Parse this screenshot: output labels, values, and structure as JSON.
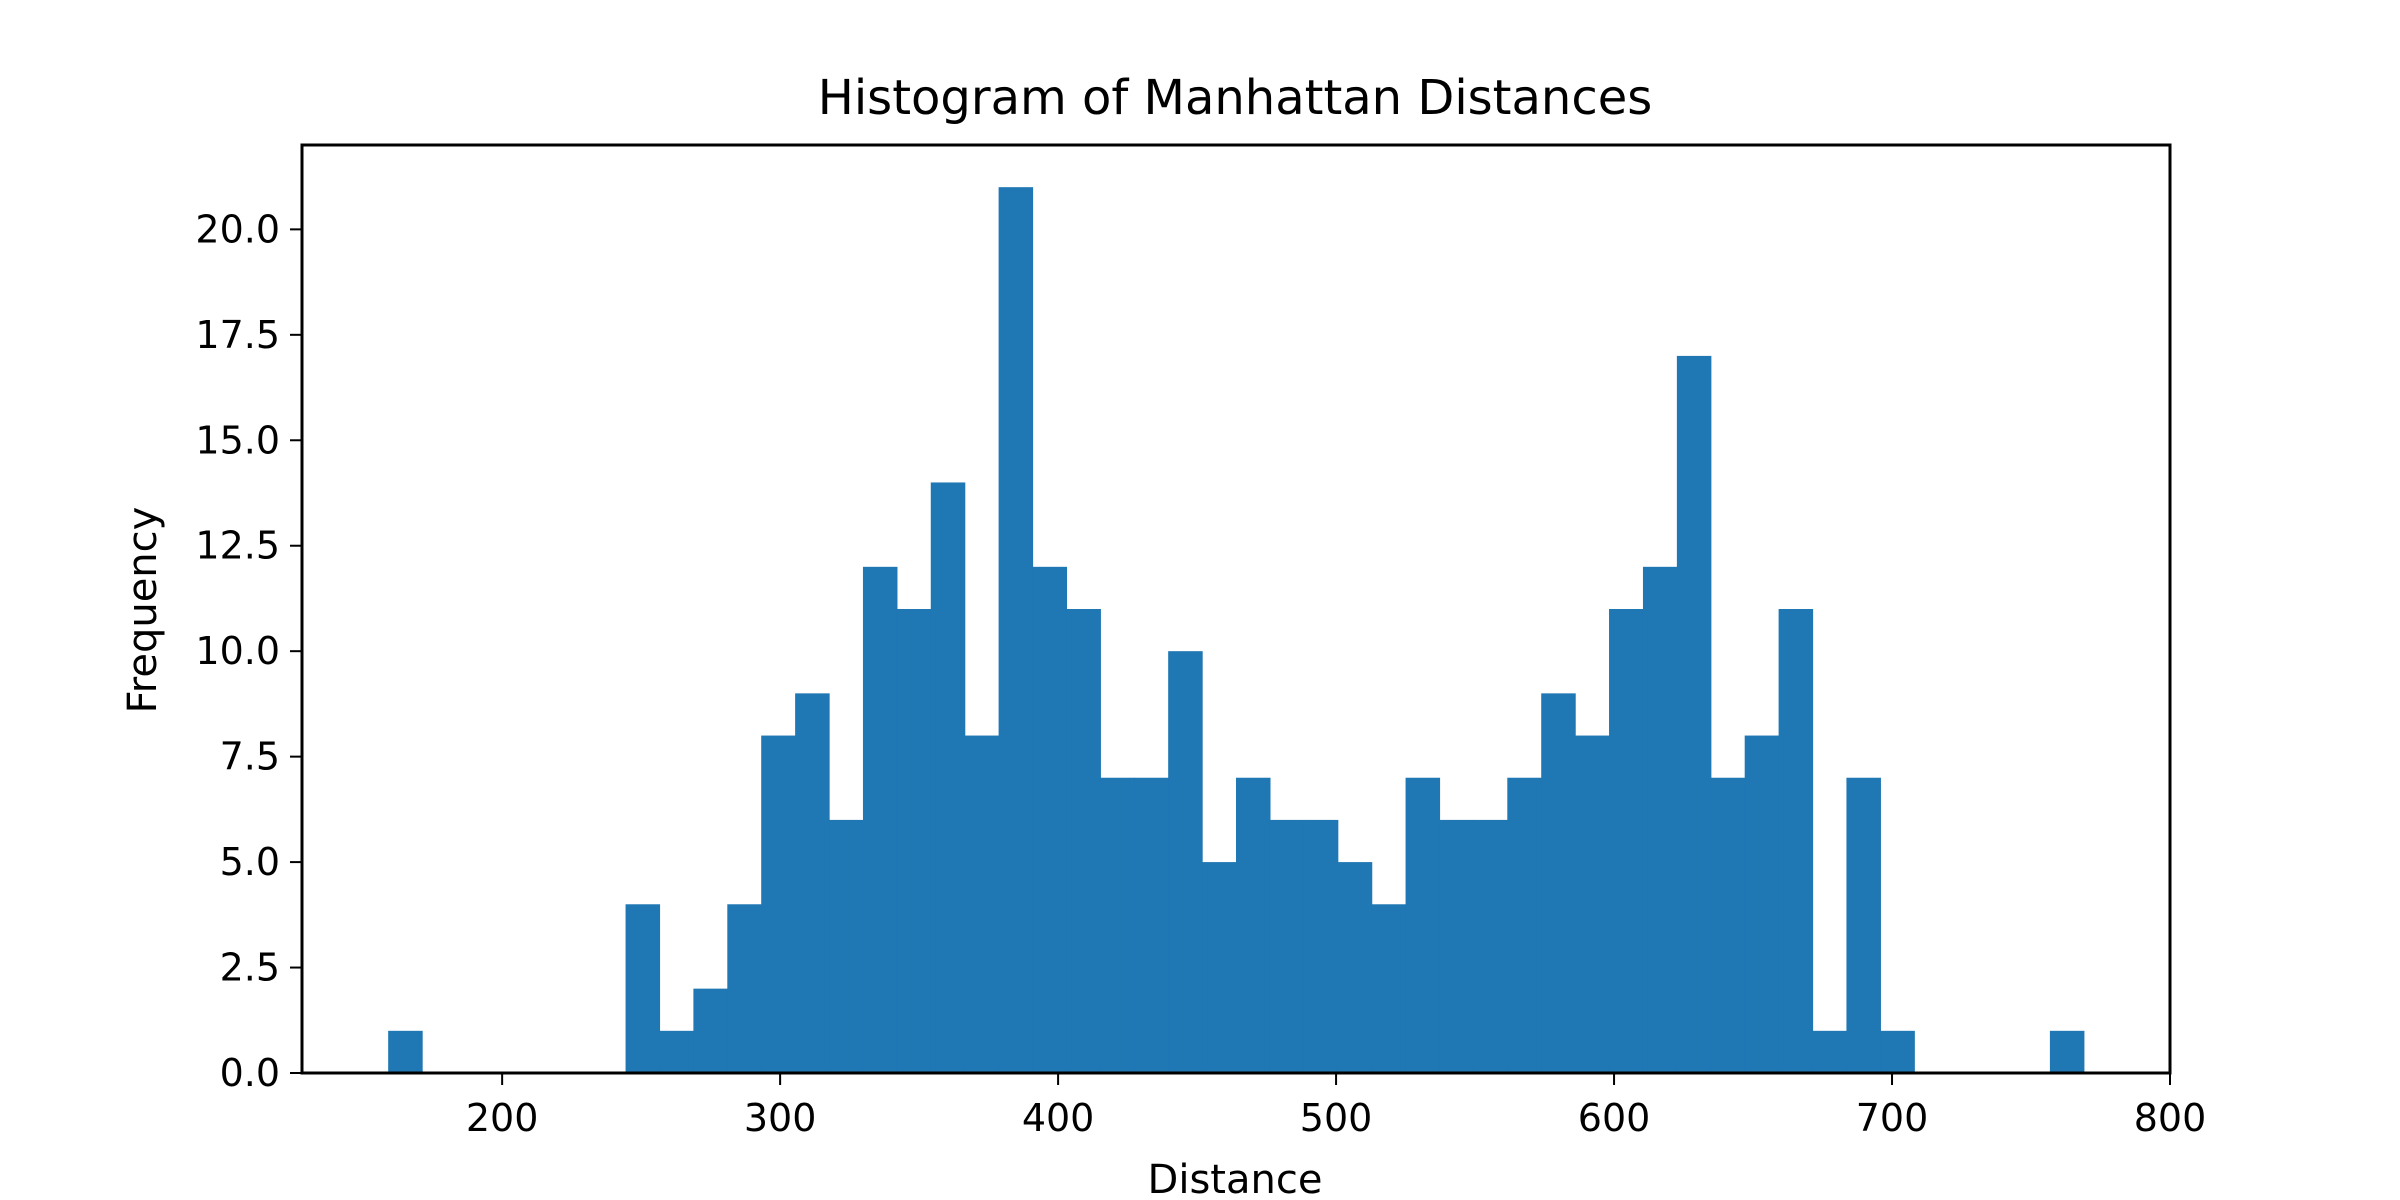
{
  "chart_data": {
    "type": "bar",
    "title": "Histogram of Manhattan Distances",
    "xlabel": "Distance",
    "ylabel": "Frequency",
    "xlim": [
      128,
      800
    ],
    "ylim": [
      0,
      22
    ],
    "xticks": [
      200,
      300,
      400,
      500,
      600,
      700,
      800
    ],
    "yticks": [
      0.0,
      2.5,
      5.0,
      7.5,
      10.0,
      12.5,
      15.0,
      17.5,
      20.0
    ],
    "ytick_labels": [
      "0.0",
      "2.5",
      "5.0",
      "7.5",
      "10.0",
      "12.5",
      "15.0",
      "17.5",
      "20.0"
    ],
    "bin_start": 159,
    "bin_width": 12.2,
    "counts": [
      1,
      0,
      0,
      0,
      0,
      0,
      0,
      4,
      1,
      2,
      4,
      8,
      9,
      6,
      12,
      11,
      14,
      8,
      21,
      12,
      11,
      7,
      7,
      10,
      5,
      7,
      6,
      6,
      5,
      4,
      7,
      6,
      6,
      7,
      9,
      8,
      11,
      12,
      17,
      7,
      8,
      11,
      1,
      7,
      1,
      0,
      0,
      0,
      0,
      1
    ],
    "bar_color": "#1f77b4",
    "grid": false,
    "legend": "none"
  }
}
